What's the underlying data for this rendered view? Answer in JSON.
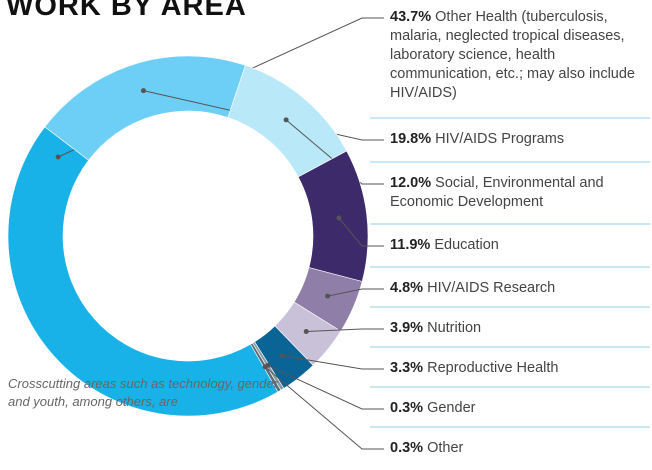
{
  "chart_data": {
    "type": "donut",
    "title": "WORK BY AREA",
    "note": "Crosscutting areas such as technology, gender and youth, among others, are",
    "categories": [
      "Other Health (tuberculosis, malaria, neglected tropical diseases, laboratory science, health communication, etc.; may also include HIV/AIDS)",
      "HIV/AIDS Programs",
      "Social, Environmental and Economic Development",
      "Education",
      "HIV/AIDS Research",
      "Nutrition",
      "Reproductive Health",
      "Gender",
      "Other"
    ],
    "values": [
      43.7,
      19.8,
      12.0,
      11.9,
      4.8,
      3.9,
      3.3,
      0.3,
      0.3
    ],
    "value_labels": [
      "43.7%",
      "19.8%",
      "12.0%",
      "11.9%",
      "4.8%",
      "3.9%",
      "3.3%",
      "0.3%",
      "0.3%"
    ],
    "colors": [
      "#19b2e8",
      "#6dcff6",
      "#b9e8f8",
      "#3d2a6b",
      "#8f7fa8",
      "#c8c1d8",
      "#0a6496",
      "#8a9aa5",
      "#5c6b75"
    ]
  }
}
